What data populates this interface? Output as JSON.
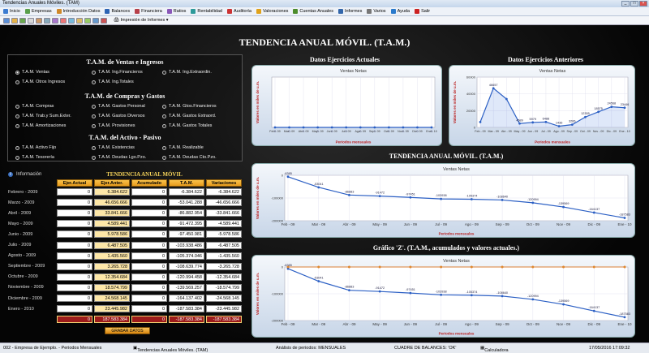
{
  "window": {
    "title": "Tendencias Anuales Móviles. (TAM)"
  },
  "menu": [
    {
      "label": "Inicio",
      "color": "#3b7bd1"
    },
    {
      "label": "Empresas",
      "color": "#5aa04b"
    },
    {
      "label": "Introducción Datos",
      "color": "#d0892a"
    },
    {
      "label": "Balances",
      "color": "#2e64b4"
    },
    {
      "label": "Financiera",
      "color": "#b7404a"
    },
    {
      "label": "Ratios",
      "color": "#8a58b8"
    },
    {
      "label": "Rentabilidad",
      "color": "#2d9a9a"
    },
    {
      "label": "Auditoría",
      "color": "#c33"
    },
    {
      "label": "Valoraciones",
      "color": "#e0a21a"
    },
    {
      "label": "Cuentas Anuales",
      "color": "#4c8c2b"
    },
    {
      "label": "Informes",
      "color": "#3366aa"
    },
    {
      "label": "Varios",
      "color": "#777"
    },
    {
      "label": "Ayuda",
      "color": "#2a7acc"
    },
    {
      "label": "Salir",
      "color": "#cc2222"
    }
  ],
  "toolbar": {
    "report_label": "Impresión de Informes"
  },
  "page": {
    "title": "TENDENCIA ANUAL MÓVIL. (T.A.M.)"
  },
  "options": {
    "ventas": {
      "heading": "T.A.M. de Ventas e Ingresos",
      "items": [
        {
          "label": "T.A.M. Ventas",
          "selected": true
        },
        {
          "label": "T.A.M. Ing.Financieros",
          "selected": false
        },
        {
          "label": "T.A.M. Ing.Extraordin.",
          "selected": false
        },
        {
          "label": "T.A.M. Otros Ingresos",
          "selected": false
        },
        {
          "label": "T.A.M. Ing.Totales",
          "selected": false
        }
      ]
    },
    "compras": {
      "heading": "T.A.M. de Compras y Gastos",
      "items": [
        {
          "label": "T.A.M. Compras",
          "selected": false
        },
        {
          "label": "T.A.M. Gastos Personal",
          "selected": false
        },
        {
          "label": "T.A.M. Gtos.Financieros",
          "selected": false
        },
        {
          "label": "T.A.M. Trab.y Sum.Exter.",
          "selected": false
        },
        {
          "label": "T.A.M. Gastos Diversos",
          "selected": false
        },
        {
          "label": "T.A.M. Gastos Extraord.",
          "selected": false
        },
        {
          "label": "T.A.M. Amortizaciones",
          "selected": false
        },
        {
          "label": "T.A.M. Provisiones",
          "selected": false
        },
        {
          "label": "T.A.M. Gastos Totales",
          "selected": false
        }
      ]
    },
    "activo": {
      "heading": "T.A.M. del Activo - Pasivo",
      "items": [
        {
          "label": "T.A.M. Activo Fijo",
          "selected": false
        },
        {
          "label": "T.A.M. Existencias",
          "selected": false
        },
        {
          "label": "T.A.M. Realizable",
          "selected": false
        },
        {
          "label": "T.A.M. Tesorería",
          "selected": false
        },
        {
          "label": "T.A.M. Deudas Lgo.Pzo.",
          "selected": false
        },
        {
          "label": "T.A.M. Deudas Cto.Pzo.",
          "selected": false
        }
      ]
    }
  },
  "info_label": "Información",
  "table": {
    "title": "TENDENCIA ANUAL MÓVIL",
    "headers": [
      "Ejer.Actual",
      "Ejer.Anter.",
      "Acumulado",
      "T.A.M.",
      "Variaciones"
    ],
    "rows": [
      {
        "label": "Febrero - 2009",
        "actual": "0",
        "anterior": "6.384.622",
        "acumulado": "0",
        "tam": "-6.384.622",
        "variacion": "-6.384.622"
      },
      {
        "label": "Marzo - 2009",
        "actual": "0",
        "anterior": "46.656.666",
        "acumulado": "0",
        "tam": "-53.041.288",
        "variacion": "-46.656.666"
      },
      {
        "label": "Abril - 2009",
        "actual": "0",
        "anterior": "33.841.666",
        "acumulado": "0",
        "tam": "-86.882.954",
        "variacion": "-33.841.666"
      },
      {
        "label": "Mayo - 2009",
        "actual": "0",
        "anterior": "4.589.441",
        "acumulado": "0",
        "tam": "-91.472.395",
        "variacion": "-4.589.441"
      },
      {
        "label": "Junio - 2009",
        "actual": "0",
        "anterior": "5.978.586",
        "acumulado": "0",
        "tam": "-97.450.981",
        "variacion": "-5.978.586"
      },
      {
        "label": "Julio - 2009",
        "actual": "0",
        "anterior": "6.487.505",
        "acumulado": "0",
        "tam": "-103.938.486",
        "variacion": "-6.487.505"
      },
      {
        "label": "Agosto - 2009",
        "actual": "0",
        "anterior": "1.435.560",
        "acumulado": "0",
        "tam": "-105.374.046",
        "variacion": "-1.435.560"
      },
      {
        "label": "Septiembre - 2009",
        "actual": "0",
        "anterior": "3.265.728",
        "acumulado": "0",
        "tam": "-108.639.774",
        "variacion": "-3.265.728"
      },
      {
        "label": "Octubre - 2009",
        "actual": "0",
        "anterior": "12.354.684",
        "acumulado": "0",
        "tam": "-120.994.458",
        "variacion": "-12.354.684"
      },
      {
        "label": "Noviembre - 2009",
        "actual": "0",
        "anterior": "18.574.799",
        "acumulado": "0",
        "tam": "-139.569.257",
        "variacion": "-18.574.799"
      },
      {
        "label": "Diciembre - 2009",
        "actual": "0",
        "anterior": "24.568.145",
        "acumulado": "0",
        "tam": "-164.137.402",
        "variacion": "-24.568.145"
      },
      {
        "label": "Enero - 2010",
        "actual": "0",
        "anterior": "23.445.982",
        "acumulado": "0",
        "tam": "-187.583.384",
        "variacion": "-23.445.982"
      }
    ],
    "totals": {
      "actual": "0",
      "anterior": "187.583.384",
      "acumulado": "0",
      "tam": "-187.583.384",
      "variacion": "-187.583.384"
    },
    "save_button": "GRABAR DATOS"
  },
  "charts": {
    "actuales_title": "Datos Ejercicios Actuales",
    "anteriores_title": "Datos Ejercicios Anteriores",
    "tam_title": "TENDENCIA ANUAL MÓVIL. (T.A.M.)",
    "z_title": "Gráfico 'Z'. (T.A.M., acumulados y valores actuales.)"
  },
  "chart_data": [
    {
      "type": "line",
      "title": "Ventas Netas",
      "xlabel": "Periodos mensuales",
      "ylabel": "Valores en miles de u.m.",
      "categories": [
        "Feb - 09",
        "Mar - 09",
        "Abr - 09",
        "May - 09",
        "Jun - 09",
        "Jul - 09",
        "Ago - 09",
        "Sep - 09",
        "Oct - 09",
        "Nov - 09",
        "Dic - 09",
        "Ene - 10"
      ],
      "values": [
        0,
        0,
        0,
        0,
        0,
        0,
        0,
        0,
        0,
        0,
        0,
        0
      ],
      "data_labels": [
        "0",
        "0",
        "0",
        "0",
        "0",
        "0",
        "0",
        "0",
        "0",
        "0",
        "0",
        "0"
      ],
      "ylim": [
        0,
        1
      ]
    },
    {
      "type": "area",
      "title": "Ventas Netas",
      "xlabel": "Periodos mensuales",
      "ylabel": "Valores en miles de u.m.",
      "categories": [
        "Feb - 09",
        "Mar - 09",
        "Abr - 09",
        "May - 09",
        "Jun - 09",
        "Jul - 09",
        "Ago - 09",
        "Sep - 09",
        "Oct - 09",
        "Nov - 09",
        "Dic - 09",
        "Ene - 10"
      ],
      "values": [
        6385,
        46657,
        33842,
        4589,
        5979,
        6488,
        1436,
        3266,
        12355,
        18575,
        24568,
        23446
      ],
      "data_labels": [
        "",
        "46657",
        "",
        "4589",
        "5979",
        "6488",
        "1436",
        "3266",
        "12355",
        "18575",
        "24568",
        "23446"
      ],
      "yticks": [
        "0",
        "20000",
        "40000",
        "60000"
      ],
      "ylim": [
        0,
        60000
      ]
    },
    {
      "type": "line",
      "title": "Ventas Netas",
      "xlabel": "Periodos mensuales",
      "ylabel": "Valores en miles de u.m.",
      "categories": [
        "Feb - 09",
        "Mar - 09",
        "Abr - 09",
        "May - 09",
        "Jun - 09",
        "Jul - 09",
        "Ago - 09",
        "Sep - 09",
        "Oct - 09",
        "Nov - 09",
        "Dic - 09",
        "Ene - 10"
      ],
      "values": [
        -6385,
        -53041,
        -86883,
        -91472,
        -97451,
        -103938,
        -105374,
        -108640,
        -120994,
        -139569,
        -164137,
        -187583
      ],
      "data_labels": [
        "-6385",
        "-53041",
        "-86883",
        "-91472",
        "-97451",
        "-103938",
        "-105374",
        "-108640",
        "-120994",
        "-139569",
        "-164137",
        "-187583"
      ],
      "yticks": [
        "0",
        "-100000",
        "-200000"
      ],
      "ylim": [
        -200000,
        0
      ]
    },
    {
      "type": "line",
      "title": "Ventas Netas",
      "xlabel": "Periodos mensuales",
      "ylabel": "Valores en miles de u.m.",
      "categories": [
        "Feb - 09",
        "Mar - 09",
        "Abr - 09",
        "May - 09",
        "Jun - 09",
        "Jul - 09",
        "Ago - 09",
        "Sep - 09",
        "Oct - 09",
        "Nov - 09",
        "Dic - 09",
        "Ene - 10"
      ],
      "series": [
        {
          "values": [
            -6385,
            -53041,
            -86883,
            -91472,
            -97451,
            -103938,
            -105374,
            -108640,
            -120994,
            -139569,
            -164137,
            -187583
          ],
          "color": "#2b5fc4"
        },
        {
          "values": [
            0,
            0,
            0,
            0,
            0,
            0,
            0,
            0,
            0,
            0,
            0,
            0
          ],
          "color": "#c0392b"
        },
        {
          "values": [
            0,
            0,
            0,
            0,
            0,
            0,
            0,
            0,
            0,
            0,
            0,
            0
          ],
          "color": "#e08a2a"
        }
      ],
      "data_labels": [
        "-6385",
        "-53041",
        "-86883",
        "-91472",
        "-97451",
        "-103938",
        "-105374",
        "-108640",
        "-120994",
        "-139569",
        "-164137",
        "-187583"
      ],
      "yticks": [
        "0",
        "-100000",
        "-200000"
      ],
      "ylim": [
        -200000,
        0
      ]
    }
  ],
  "status": {
    "company": "002 - Empresa de Ejemplo. - Periodos Mensuales",
    "module": "Tendencias Anuales Móviles. (TAM)",
    "analysis": "Análisis de periodos: MENSUALES",
    "balance": "CUADRE DE BALANCES: 'OK'",
    "calc": "Calculadora",
    "datetime": "17/05/2016 17:09:32"
  }
}
